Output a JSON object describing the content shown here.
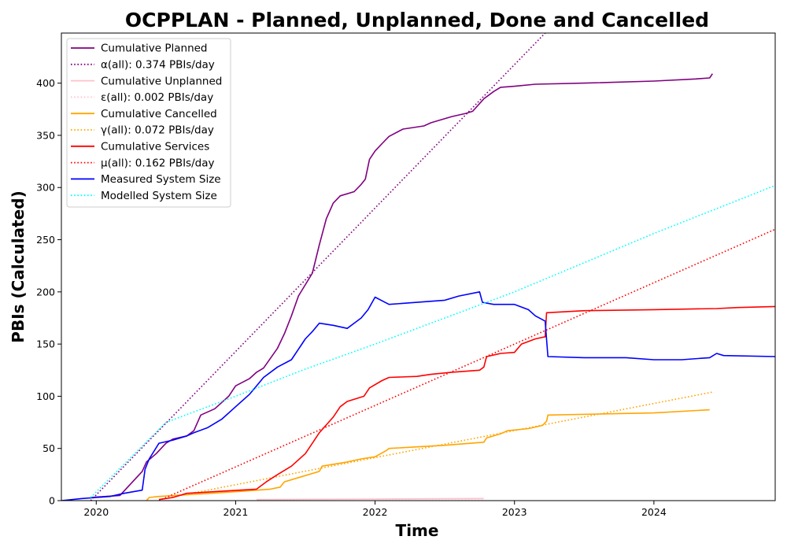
{
  "chart_data": {
    "type": "line",
    "title": "OCPPLAN - Planned, Unplanned, Done  and Cancelled",
    "xlabel": "Time",
    "ylabel": "PBIs (Calculated)",
    "xlim": [
      2019.75,
      2024.87
    ],
    "ylim": [
      0,
      448
    ],
    "x_ticks": [
      2020,
      2021,
      2022,
      2023,
      2024
    ],
    "x_tick_labels": [
      "2020",
      "2021",
      "2022",
      "2023",
      "2024"
    ],
    "y_ticks": [
      0,
      50,
      100,
      150,
      200,
      250,
      300,
      350,
      400
    ],
    "y_tick_labels": [
      "0",
      "50",
      "100",
      "150",
      "200",
      "250",
      "300",
      "350",
      "400"
    ],
    "legend_position": "top-left",
    "grid": false,
    "series": [
      {
        "name": "Cumulative Planned",
        "style": "solid",
        "color": "#800080",
        "points": [
          [
            2019.96,
            3
          ],
          [
            2020.17,
            5
          ],
          [
            2020.33,
            28
          ],
          [
            2020.36,
            37
          ],
          [
            2020.43,
            45
          ],
          [
            2020.5,
            55
          ],
          [
            2020.55,
            59
          ],
          [
            2020.65,
            62
          ],
          [
            2020.7,
            67
          ],
          [
            2020.75,
            82
          ],
          [
            2020.85,
            88
          ],
          [
            2020.95,
            100
          ],
          [
            2021,
            110
          ],
          [
            2021.1,
            117
          ],
          [
            2021.15,
            123
          ],
          [
            2021.2,
            127
          ],
          [
            2021.3,
            146
          ],
          [
            2021.35,
            160
          ],
          [
            2021.4,
            177
          ],
          [
            2021.45,
            196
          ],
          [
            2021.55,
            218
          ],
          [
            2021.6,
            245
          ],
          [
            2021.65,
            270
          ],
          [
            2021.7,
            285
          ],
          [
            2021.75,
            292
          ],
          [
            2021.85,
            296
          ],
          [
            2021.9,
            303
          ],
          [
            2021.93,
            308
          ],
          [
            2021.96,
            327
          ],
          [
            2022,
            335
          ],
          [
            2022.05,
            342
          ],
          [
            2022.1,
            349
          ],
          [
            2022.2,
            356
          ],
          [
            2022.35,
            359
          ],
          [
            2022.4,
            362
          ],
          [
            2022.55,
            368
          ],
          [
            2022.65,
            371
          ],
          [
            2022.7,
            373
          ],
          [
            2022.78,
            385
          ],
          [
            2022.85,
            392
          ],
          [
            2022.9,
            396
          ],
          [
            2023,
            397
          ],
          [
            2023.15,
            399
          ],
          [
            2023.5,
            400
          ],
          [
            2024,
            402
          ],
          [
            2024.3,
            404
          ],
          [
            2024.4,
            405
          ],
          [
            2024.42,
            409
          ]
        ]
      },
      {
        "name": "α(all): 0.374 PBIs/day",
        "style": "dotted",
        "color": "#800080",
        "points": [
          [
            2019.96,
            0
          ],
          [
            2023.22,
            448
          ]
        ]
      },
      {
        "name": "Cumulative Unplanned",
        "style": "solid",
        "color": "#ffc0cb",
        "points": [
          [
            2021.15,
            1
          ],
          [
            2022,
            1.5
          ],
          [
            2022.78,
            2
          ]
        ]
      },
      {
        "name": "ε(all): 0.002 PBIs/day",
        "style": "dotted",
        "color": "#ffc0cb",
        "points": [
          [
            2021.15,
            1
          ],
          [
            2022.78,
            1.7
          ]
        ]
      },
      {
        "name": "Cumulative Cancelled",
        "style": "solid",
        "color": "#ffa500",
        "points": [
          [
            2020.36,
            0
          ],
          [
            2020.38,
            3
          ],
          [
            2020.45,
            4
          ],
          [
            2020.7,
            6
          ],
          [
            2021.05,
            9
          ],
          [
            2021.25,
            11
          ],
          [
            2021.32,
            13
          ],
          [
            2021.35,
            18
          ],
          [
            2021.45,
            22
          ],
          [
            2021.6,
            28
          ],
          [
            2021.62,
            33
          ],
          [
            2021.8,
            37
          ],
          [
            2021.9,
            40
          ],
          [
            2022,
            42
          ],
          [
            2022.08,
            48
          ],
          [
            2022.1,
            50
          ],
          [
            2022.5,
            53
          ],
          [
            2022.78,
            56
          ],
          [
            2022.8,
            60
          ],
          [
            2022.9,
            64
          ],
          [
            2022.95,
            67
          ],
          [
            2023.1,
            69
          ],
          [
            2023.2,
            72
          ],
          [
            2023.23,
            76
          ],
          [
            2023.24,
            82
          ],
          [
            2023.6,
            83
          ],
          [
            2024,
            84
          ],
          [
            2024.4,
            87
          ]
        ]
      },
      {
        "name": "γ(all): 0.072 PBIs/day",
        "style": "dotted",
        "color": "#ffa500",
        "points": [
          [
            2020.45,
            1
          ],
          [
            2024.42,
            104
          ]
        ]
      },
      {
        "name": "Cumulative Services",
        "style": "solid",
        "color": "#ff0000",
        "points": [
          [
            2020.45,
            1
          ],
          [
            2020.55,
            3
          ],
          [
            2020.65,
            7
          ],
          [
            2021.15,
            11
          ],
          [
            2021.22,
            18
          ],
          [
            2021.3,
            25
          ],
          [
            2021.4,
            33
          ],
          [
            2021.5,
            45
          ],
          [
            2021.55,
            55
          ],
          [
            2021.6,
            65
          ],
          [
            2021.7,
            80
          ],
          [
            2021.75,
            90
          ],
          [
            2021.8,
            95
          ],
          [
            2021.92,
            100
          ],
          [
            2021.96,
            108
          ],
          [
            2022.05,
            115
          ],
          [
            2022.1,
            118
          ],
          [
            2022.3,
            119
          ],
          [
            2022.4,
            121
          ],
          [
            2022.55,
            123
          ],
          [
            2022.75,
            125
          ],
          [
            2022.78,
            128
          ],
          [
            2022.8,
            138
          ],
          [
            2022.9,
            141
          ],
          [
            2023,
            142
          ],
          [
            2023.05,
            150
          ],
          [
            2023.15,
            155
          ],
          [
            2023.22,
            157
          ],
          [
            2023.23,
            180
          ],
          [
            2023.5,
            182
          ],
          [
            2024,
            183
          ],
          [
            2024.45,
            184
          ],
          [
            2024.6,
            185
          ],
          [
            2024.87,
            186
          ]
        ]
      },
      {
        "name": "μ(all): 0.162 PBIs/day",
        "style": "dotted",
        "color": "#ff0000",
        "points": [
          [
            2020.45,
            0
          ],
          [
            2024.87,
            260
          ]
        ]
      },
      {
        "name": "Measured System Size",
        "style": "solid",
        "color": "#0000ff",
        "points": [
          [
            2019.75,
            0
          ],
          [
            2019.9,
            2
          ],
          [
            2020,
            3
          ],
          [
            2020.1,
            4
          ],
          [
            2020.2,
            7
          ],
          [
            2020.33,
            10
          ],
          [
            2020.35,
            30
          ],
          [
            2020.38,
            40
          ],
          [
            2020.45,
            55
          ],
          [
            2020.55,
            58
          ],
          [
            2020.65,
            62
          ],
          [
            2020.7,
            65
          ],
          [
            2020.8,
            70
          ],
          [
            2020.9,
            78
          ],
          [
            2021,
            90
          ],
          [
            2021.1,
            102
          ],
          [
            2021.15,
            110
          ],
          [
            2021.2,
            118
          ],
          [
            2021.3,
            128
          ],
          [
            2021.4,
            135
          ],
          [
            2021.45,
            145
          ],
          [
            2021.5,
            155
          ],
          [
            2021.55,
            162
          ],
          [
            2021.6,
            170
          ],
          [
            2021.7,
            168
          ],
          [
            2021.8,
            165
          ],
          [
            2021.85,
            170
          ],
          [
            2021.9,
            175
          ],
          [
            2021.95,
            183
          ],
          [
            2022,
            195
          ],
          [
            2022.1,
            188
          ],
          [
            2022.3,
            190
          ],
          [
            2022.5,
            192
          ],
          [
            2022.6,
            196
          ],
          [
            2022.75,
            200
          ],
          [
            2022.77,
            190
          ],
          [
            2022.85,
            188
          ],
          [
            2023,
            188
          ],
          [
            2023.1,
            183
          ],
          [
            2023.15,
            177
          ],
          [
            2023.22,
            172
          ],
          [
            2023.24,
            138
          ],
          [
            2023.5,
            137
          ],
          [
            2023.8,
            137
          ],
          [
            2024,
            135
          ],
          [
            2024.2,
            135
          ],
          [
            2024.4,
            137
          ],
          [
            2024.45,
            141
          ],
          [
            2024.5,
            139
          ],
          [
            2024.87,
            138
          ]
        ]
      },
      {
        "name": "Modelled System Size",
        "style": "dotted",
        "color": "#00ffff",
        "points": [
          [
            2019.96,
            3
          ],
          [
            2020.5,
            75
          ],
          [
            2021,
            100
          ],
          [
            2021.5,
            126
          ],
          [
            2022,
            150
          ],
          [
            2022.5,
            175
          ],
          [
            2023,
            200
          ],
          [
            2023.5,
            228
          ],
          [
            2024,
            256
          ],
          [
            2024.87,
            302
          ]
        ]
      }
    ]
  }
}
